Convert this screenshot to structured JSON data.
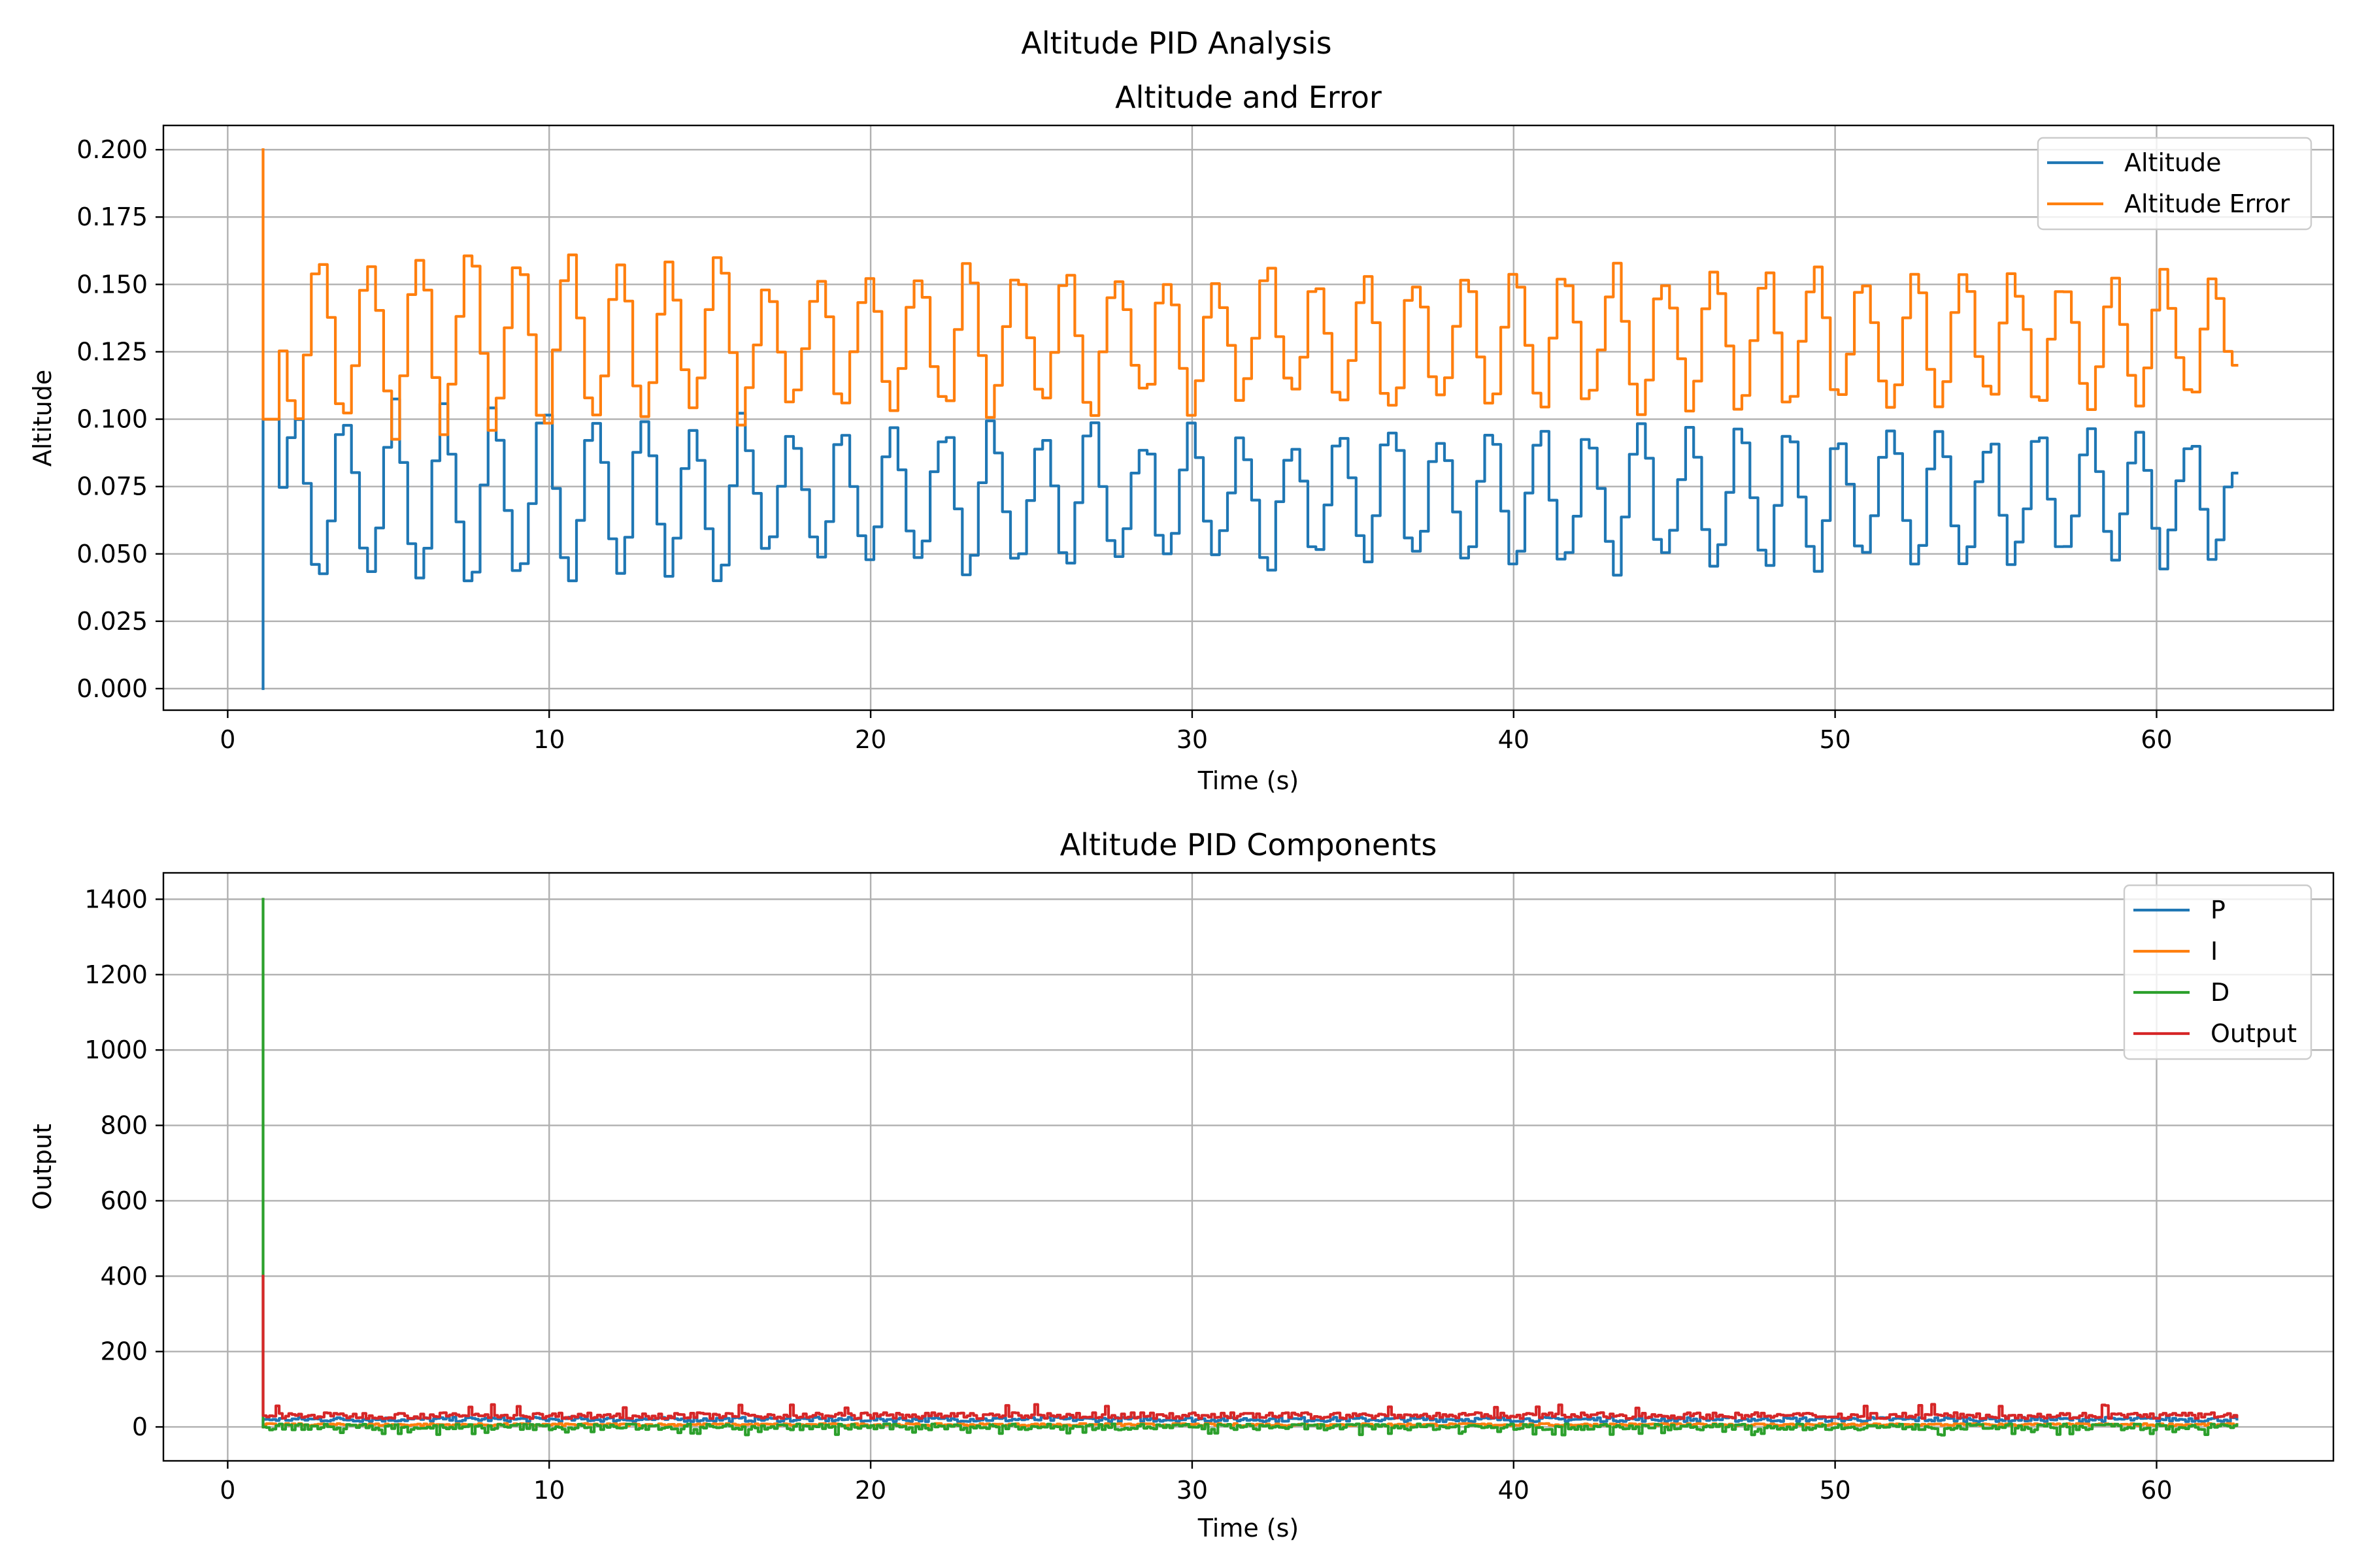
{
  "figure_title": "Altitude PID Analysis",
  "chart_data": [
    {
      "type": "line",
      "title": "Altitude and Error",
      "xlabel": "Time (s)",
      "ylabel": "Altitude",
      "xlim": [
        -2,
        65.5
      ],
      "ylim": [
        -0.008,
        0.209
      ],
      "xticks": [
        0,
        10,
        20,
        30,
        40,
        50,
        60
      ],
      "yticks": [
        0.0,
        0.025,
        0.05,
        0.075,
        0.1,
        0.125,
        0.15,
        0.175,
        0.2
      ],
      "ytick_labels": [
        "0.000",
        "0.025",
        "0.050",
        "0.075",
        "0.100",
        "0.125",
        "0.150",
        "0.175",
        "0.200"
      ],
      "grid": true,
      "legend_position": "upper right",
      "step_interval": 0.25,
      "x_range": [
        1.1,
        62.5
      ],
      "oscillation_period": 1.55,
      "series": [
        {
          "name": "Altitude",
          "color": "#1f77b4",
          "initial": [
            [
              1.1,
              0.0
            ],
            [
              1.1,
              0.1
            ],
            [
              1.6,
              0.1
            ]
          ],
          "range": [
            0.04,
            0.112
          ],
          "mean": 0.071,
          "amplitude": 0.025,
          "final": 0.08
        },
        {
          "name": "Altitude Error",
          "color": "#ff7f0e",
          "initial": [
            [
              1.1,
              0.2
            ],
            [
              1.1,
              0.1
            ],
            [
              1.6,
              0.1
            ]
          ],
          "range": [
            0.088,
            0.161
          ],
          "mean": 0.129,
          "amplitude": 0.025,
          "final": 0.12
        }
      ]
    },
    {
      "type": "line",
      "title": "Altitude PID Components",
      "xlabel": "Time (s)",
      "ylabel": "Output",
      "xlim": [
        -2,
        65.5
      ],
      "ylim": [
        -90,
        1470
      ],
      "xticks": [
        0,
        10,
        20,
        30,
        40,
        50,
        60
      ],
      "yticks": [
        0,
        200,
        400,
        600,
        800,
        1000,
        1200,
        1400
      ],
      "ytick_labels": [
        "0",
        "200",
        "400",
        "600",
        "800",
        "1000",
        "1200",
        "1400"
      ],
      "grid": true,
      "legend_position": "upper right",
      "x_range": [
        1.1,
        62.5
      ],
      "series": [
        {
          "name": "P",
          "color": "#1f77b4",
          "initial_peak": 0,
          "mean": 20,
          "amplitude": 6
        },
        {
          "name": "I",
          "color": "#ff7f0e",
          "initial_peak": 0,
          "mean": 6,
          "amplitude": 3
        },
        {
          "name": "D",
          "color": "#2ca02c",
          "initial_peak": 1400,
          "mean": 0,
          "amplitude": 8
        },
        {
          "name": "Output",
          "color": "#d62728",
          "initial_peak": 400,
          "mean": 30,
          "amplitude": 8
        }
      ]
    }
  ]
}
